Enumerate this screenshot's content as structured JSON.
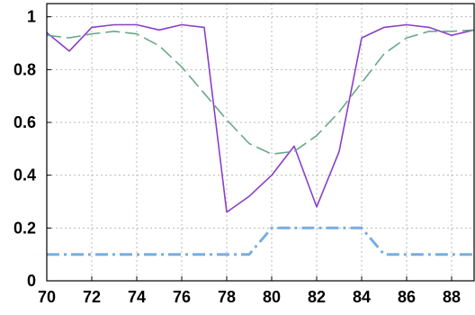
{
  "chart_data": {
    "type": "line",
    "title": "",
    "xlabel": "",
    "ylabel": "",
    "xlim": [
      70,
      89
    ],
    "ylim": [
      0,
      1.05
    ],
    "grid": true,
    "legend": "none",
    "x_ticks": [
      70,
      72,
      74,
      76,
      78,
      80,
      82,
      84,
      86,
      88
    ],
    "y_ticks": [
      0,
      0.2,
      0.4,
      0.6,
      0.8,
      1
    ],
    "x_tick_labels": [
      "70",
      "72",
      "74",
      "76",
      "78",
      "80",
      "82",
      "84",
      "86",
      "88"
    ],
    "y_tick_labels": [
      "0",
      "0.2",
      "0.4",
      "0.6",
      "0.8",
      "1"
    ],
    "series": [
      {
        "color": "#8a3fc8",
        "style": "solid",
        "x": [
          70,
          71,
          72,
          73,
          74,
          75,
          76,
          77,
          78,
          79,
          80,
          81,
          82,
          83,
          84,
          85,
          86,
          87,
          88,
          89
        ],
        "y": [
          0.94,
          0.87,
          0.96,
          0.97,
          0.97,
          0.95,
          0.97,
          0.96,
          0.26,
          0.32,
          0.4,
          0.51,
          0.28,
          0.49,
          0.92,
          0.96,
          0.97,
          0.96,
          0.93,
          0.95
        ]
      },
      {
        "color": "#6aa88a",
        "style": "dashed",
        "x": [
          70,
          71,
          72,
          73,
          74,
          75,
          76,
          77,
          78,
          79,
          80,
          81,
          82,
          83,
          84,
          85,
          86,
          87,
          88,
          89
        ],
        "y": [
          0.93,
          0.92,
          0.935,
          0.945,
          0.935,
          0.89,
          0.81,
          0.71,
          0.61,
          0.52,
          0.48,
          0.49,
          0.55,
          0.64,
          0.75,
          0.86,
          0.92,
          0.945,
          0.945,
          0.95
        ]
      },
      {
        "color": "#78aee0",
        "style": "dash-dot",
        "x": [
          70,
          71,
          72,
          73,
          74,
          75,
          76,
          77,
          78,
          79,
          80,
          81,
          82,
          83,
          84,
          85,
          86,
          87,
          88,
          89
        ],
        "y": [
          0.1,
          0.1,
          0.1,
          0.1,
          0.1,
          0.1,
          0.1,
          0.1,
          0.1,
          0.1,
          0.2,
          0.2,
          0.2,
          0.2,
          0.2,
          0.1,
          0.1,
          0.1,
          0.1,
          0.1
        ]
      }
    ]
  }
}
